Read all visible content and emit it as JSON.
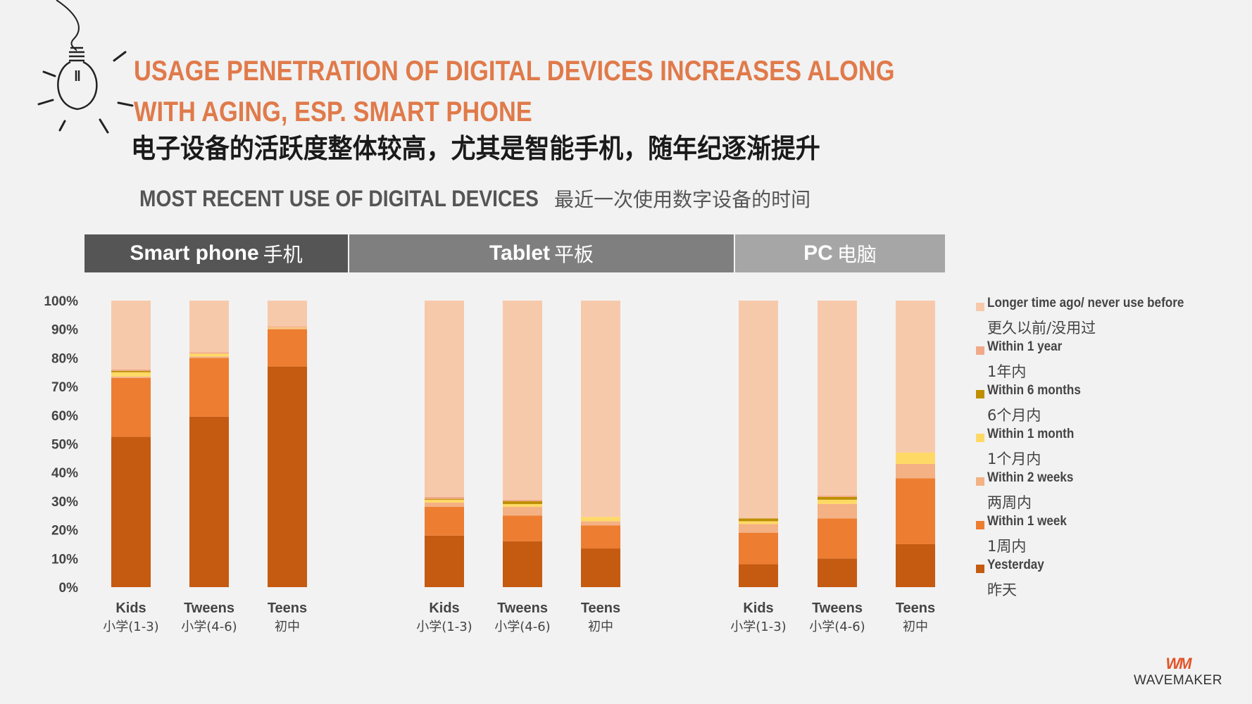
{
  "title": {
    "en": "USAGE PENETRATION OF DIGITAL DEVICES INCREASES ALONG WITH AGING, ESP. SMART PHONE",
    "cn": "电子设备的活跃度整体较高，尤其是智能手机，随年纪逐渐提升"
  },
  "subtitle": {
    "en": "MOST RECENT USE OF DIGITAL DEVICES",
    "cn": "最近一次使用数字设备的时间"
  },
  "device_headers": [
    {
      "en": "Smart phone",
      "cn": "手机",
      "color": "#555555"
    },
    {
      "en": "Tablet",
      "cn": "平板",
      "color": "#7f7f7f"
    },
    {
      "en": "PC",
      "cn": "电脑",
      "color": "#a6a6a6"
    }
  ],
  "legend": [
    {
      "en": "Longer time ago/ never use before",
      "cn": "更久以前/没用过",
      "color": "#f7c9ab"
    },
    {
      "en": "Within 1 year",
      "cn": "1年内",
      "color": "#f2a98a"
    },
    {
      "en": "Within 6 months",
      "cn": "6个月内",
      "color": "#bf8f00"
    },
    {
      "en": "Within 1 month",
      "cn": "1个月内",
      "color": "#ffd966"
    },
    {
      "en": "Within 2 weeks",
      "cn": "两周内",
      "color": "#f4b183"
    },
    {
      "en": "Within 1 week",
      "cn": "1周内",
      "color": "#ed7d31"
    },
    {
      "en": "Yesterday",
      "cn": "昨天",
      "color": "#c55a11"
    }
  ],
  "logo": {
    "mark": "WM",
    "word": "WAVEMAKER"
  },
  "chart_data": {
    "type": "bar",
    "stacked": true,
    "yticks": [
      "0%",
      "10%",
      "20%",
      "30%",
      "40%",
      "50%",
      "60%",
      "70%",
      "80%",
      "90%",
      "100%"
    ],
    "ylim": [
      0,
      100
    ],
    "series_order_bottom_up": [
      "Yesterday",
      "Within 1 week",
      "Within 2 weeks",
      "Within 1 month",
      "Within 6 months",
      "Within 1 year",
      "Longer time ago/ never use before"
    ],
    "groups": [
      {
        "device": "Smart phone",
        "bars": [
          {
            "en": "Kids",
            "cn": "小学(1-3)",
            "values": [
              52.5,
              20.5,
              0.5,
              1.5,
              0.5,
              0.5,
              24
            ]
          },
          {
            "en": "Tweens",
            "cn": "小学(4-6)",
            "values": [
              59.5,
              20.5,
              0.5,
              1.0,
              0,
              0.5,
              18
            ]
          },
          {
            "en": "Teens",
            "cn": "初中",
            "values": [
              77,
              13,
              0.3,
              0.3,
              0,
              0.4,
              9
            ]
          }
        ]
      },
      {
        "device": "Tablet",
        "bars": [
          {
            "en": "Kids",
            "cn": "小学(1-3)",
            "values": [
              18,
              10,
              1.5,
              1.0,
              0.3,
              0.7,
              68.5
            ]
          },
          {
            "en": "Tweens",
            "cn": "小学(4-6)",
            "values": [
              16,
              9,
              3,
              1.0,
              1.0,
              0.5,
              69.5
            ]
          },
          {
            "en": "Teens",
            "cn": "初中",
            "values": [
              13.5,
              8,
              1.5,
              1.5,
              0,
              0,
              75.5
            ]
          }
        ]
      },
      {
        "device": "PC",
        "bars": [
          {
            "en": "Kids",
            "cn": "小学(1-3)",
            "values": [
              8,
              11,
              3,
              1.0,
              1.0,
              0,
              76
            ]
          },
          {
            "en": "Tweens",
            "cn": "小学(4-6)",
            "values": [
              10,
              14,
              5,
              1.5,
              1.0,
              0.5,
              68
            ]
          },
          {
            "en": "Teens",
            "cn": "初中",
            "values": [
              15,
              23,
              5,
              4,
              0,
              0,
              53
            ]
          }
        ]
      }
    ]
  }
}
